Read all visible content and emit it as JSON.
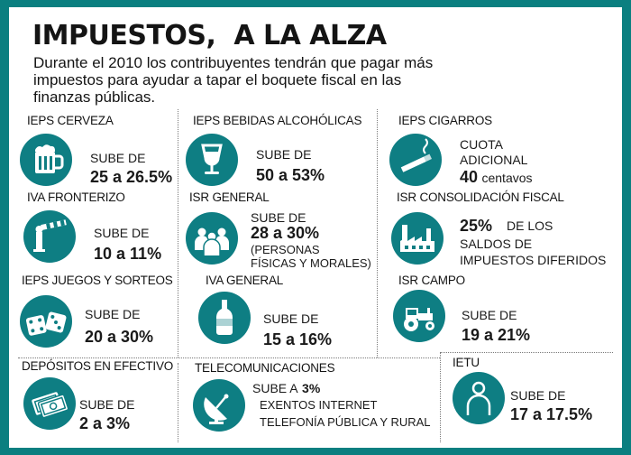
{
  "title": "IMPUESTOS,  A LA ALZA",
  "subtitle": "Durante el 2010 los contribuyentes tendrán que pagar más impuestos para ayudar a tapar el boquete fiscal en las finanzas públicas.",
  "accent_color": "#0e7e83",
  "border_color": "#0b7f80",
  "items": [
    {
      "title": "IEPS CERVEZA",
      "icon": "beer-mug-icon",
      "label": "SUBE DE",
      "value": "25 a 26.5%"
    },
    {
      "title": "IEPS BEBIDAS ALCOHÓLICAS",
      "icon": "wine-glass-icon",
      "label": "SUBE DE",
      "value": "50 a 53%"
    },
    {
      "title": "IEPS CIGARROS",
      "icon": "cigarette-icon",
      "label_line1": "CUOTA",
      "label_line2": "ADICIONAL",
      "value_number": "40",
      "value_unit": "centavos"
    },
    {
      "title": "IVA FRONTERIZO",
      "icon": "border-barrier-icon",
      "label": "SUBE DE",
      "value": "10 a 11%"
    },
    {
      "title": "ISR GENERAL",
      "icon": "people-group-icon",
      "label": "SUBE DE",
      "value": "28 a 30%",
      "note_line1": "(PERSONAS",
      "note_line2": "FÍSICAS Y MORALES)"
    },
    {
      "title": "ISR CONSOLIDACIÓN FISCAL",
      "icon": "factory-icon",
      "value": "25%",
      "text_line1": "DE LOS",
      "text_line2": "SALDOS DE",
      "text_line3": "IMPUESTOS DIFERIDOS"
    },
    {
      "title": "IEPS JUEGOS Y SORTEOS",
      "icon": "dice-icon",
      "label": "SUBE DE",
      "value": "20 a 30%"
    },
    {
      "title": "IVA GENERAL",
      "icon": "bottle-icon",
      "label": "SUBE DE",
      "value": "15 a 16%"
    },
    {
      "title": "ISR CAMPO",
      "icon": "tractor-icon",
      "label": "SUBE DE",
      "value": "19 a 21%"
    },
    {
      "title": "DEPÓSITOS EN EFECTIVO",
      "icon": "banknotes-icon",
      "label": "SUBE DE",
      "value": "2 a 3%"
    },
    {
      "title": "TELECOMUNICACIONES",
      "icon": "satellite-dish-icon",
      "label": "SUBE A",
      "value": "3%",
      "text_line1": "EXENTOS INTERNET",
      "text_line2": "TELEFONÍA PÚBLICA Y RURAL"
    },
    {
      "title": "IETU",
      "icon": "person-icon",
      "label": "SUBE DE",
      "value": "17 a 17.5%"
    }
  ]
}
